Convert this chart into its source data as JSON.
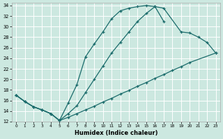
{
  "xlabel": "Humidex (Indice chaleur)",
  "bg_color": "#cce8e0",
  "grid_color": "#ffffff",
  "line_color": "#1a6b6b",
  "xlim": [
    -0.5,
    23.5
  ],
  "ylim": [
    12,
    34.5
  ],
  "xticks": [
    0,
    1,
    2,
    3,
    4,
    5,
    6,
    7,
    8,
    9,
    10,
    11,
    12,
    13,
    14,
    15,
    16,
    17,
    18,
    19,
    20,
    21,
    22,
    23
  ],
  "yticks": [
    12,
    14,
    16,
    18,
    20,
    22,
    24,
    26,
    28,
    30,
    32,
    34
  ],
  "line1_x": [
    0,
    1,
    2,
    3,
    4,
    5,
    6,
    7,
    8,
    9,
    10,
    11,
    12,
    13,
    14,
    15,
    16,
    17
  ],
  "line1_y": [
    17.0,
    15.8,
    14.8,
    14.2,
    13.5,
    12.2,
    15.5,
    19.0,
    24.3,
    26.7,
    29.0,
    31.5,
    33.0,
    33.5,
    33.8,
    34.0,
    33.8,
    31.0
  ],
  "line2_x": [
    0,
    1,
    2,
    3,
    4,
    5,
    6,
    7,
    8,
    9,
    10,
    11,
    12,
    13,
    14,
    15,
    16,
    17,
    19,
    20,
    21,
    22,
    23
  ],
  "line2_y": [
    17.0,
    15.8,
    14.8,
    14.2,
    13.5,
    12.2,
    13.5,
    15.0,
    17.5,
    20.0,
    22.5,
    25.0,
    27.0,
    29.0,
    31.0,
    32.5,
    33.8,
    33.5,
    29.0,
    28.8,
    28.0,
    27.0,
    25.0
  ],
  "line3_x": [
    0,
    1,
    2,
    3,
    4,
    5,
    6,
    7,
    8,
    9,
    10,
    11,
    12,
    13,
    14,
    15,
    16,
    17,
    18,
    19,
    20,
    23
  ],
  "line3_y": [
    17.0,
    15.8,
    14.8,
    14.2,
    13.5,
    12.2,
    12.8,
    13.5,
    14.2,
    14.9,
    15.7,
    16.4,
    17.2,
    17.9,
    18.7,
    19.4,
    20.2,
    20.9,
    21.7,
    22.4,
    23.2,
    25.0
  ]
}
